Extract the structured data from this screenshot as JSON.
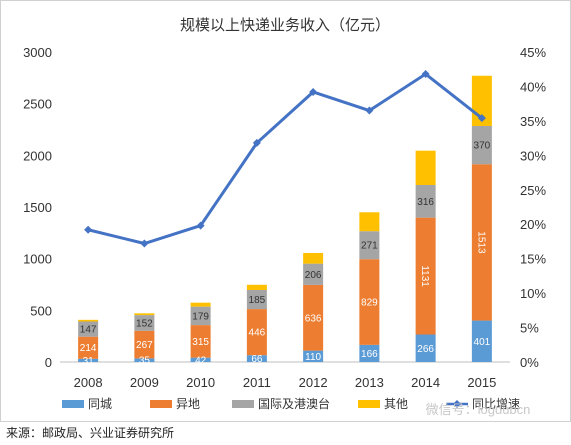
{
  "chart_data": {
    "type": "bar",
    "stacked": true,
    "title": "规模以上快递业务收入（亿元）",
    "categories": [
      "2008",
      "2009",
      "2010",
      "2011",
      "2012",
      "2013",
      "2014",
      "2015"
    ],
    "ylim": [
      0,
      3000
    ],
    "yticks": [
      "0",
      "500",
      "1000",
      "1500",
      "2000",
      "2500",
      "3000"
    ],
    "y2lim": [
      0,
      45
    ],
    "y2ticks": [
      "0%",
      "5%",
      "10%",
      "15%",
      "20%",
      "25%",
      "30%",
      "35%",
      "40%",
      "45%"
    ],
    "series": [
      {
        "name": "同城",
        "color": "#5b9bd5",
        "values": [
          31,
          35,
          42,
          66,
          110,
          166,
          266,
          401
        ],
        "labels": [
          "31",
          "35",
          "42",
          "66",
          "110",
          "166",
          "266",
          "401"
        ]
      },
      {
        "name": "异地",
        "color": "#ed7d31",
        "values": [
          214,
          267,
          315,
          446,
          636,
          829,
          1131,
          1513
        ],
        "labels": [
          "214",
          "267",
          "315",
          "446",
          "636",
          "829",
          "1131",
          "1513"
        ]
      },
      {
        "name": "国际及港澳台",
        "color": "#a5a5a5",
        "values": [
          147,
          152,
          179,
          185,
          206,
          271,
          316,
          370
        ],
        "labels": [
          "147",
          "152",
          "179",
          "185",
          "206",
          "271",
          "316",
          "370"
        ]
      },
      {
        "name": "其他",
        "color": "#ffc000",
        "values": [
          16,
          17,
          38,
          50,
          103,
          183,
          332,
          486
        ]
      }
    ],
    "line": {
      "name": "同比增速",
      "color": "#4472c4",
      "axis": "right",
      "values": [
        19.2,
        17.2,
        19.8,
        31.8,
        39.2,
        36.5,
        41.8,
        35.4
      ]
    },
    "legend_position": "bottom",
    "grid": false
  },
  "source": "来源：邮政局、兴业证券研究所",
  "watermark": "微信号：logdubcn"
}
